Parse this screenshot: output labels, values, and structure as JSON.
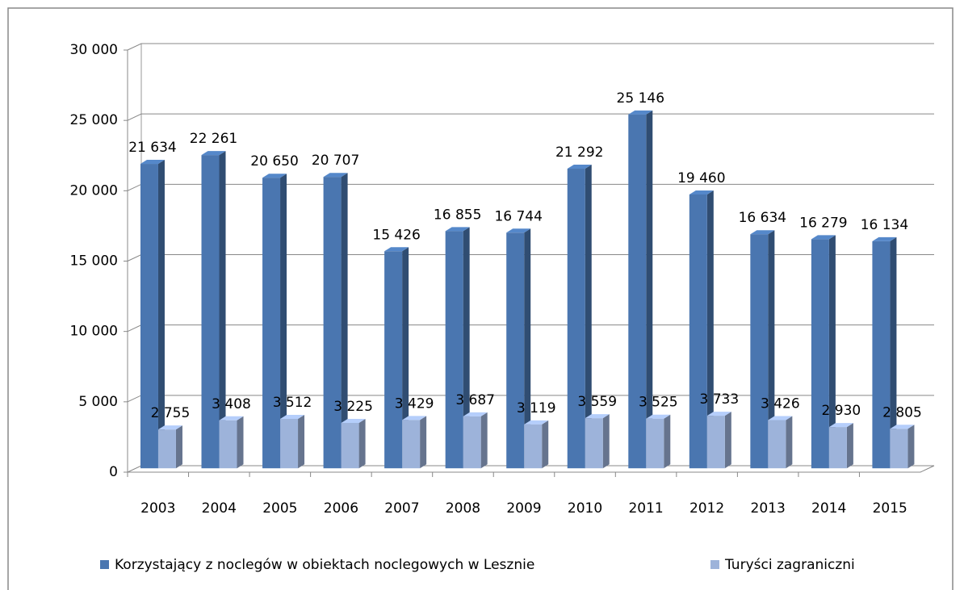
{
  "chart_data": {
    "type": "bar3d",
    "categories": [
      "2003",
      "2004",
      "2005",
      "2006",
      "2007",
      "2008",
      "2009",
      "2010",
      "2011",
      "2012",
      "2013",
      "2014",
      "2015"
    ],
    "series": [
      {
        "name": "Korzystający z noclegów w obiektach noclegowych w Lesznie",
        "color": "#4a76b0",
        "values": [
          21634,
          22261,
          20650,
          20707,
          15426,
          16855,
          16744,
          21292,
          25146,
          19460,
          16634,
          16279,
          16134
        ],
        "value_labels": [
          "21 634",
          "22 261",
          "20 650",
          "20 707",
          "15 426",
          "16 855",
          "16 744",
          "21 292",
          "25 146",
          "19 460",
          "16 634",
          "16 279",
          "16 134"
        ]
      },
      {
        "name": "Turyści zagraniczni",
        "color": "#9db3da",
        "values": [
          2755,
          3408,
          3512,
          3225,
          3429,
          3687,
          3119,
          3559,
          3525,
          3733,
          3426,
          2930,
          2805
        ],
        "value_labels": [
          "2 755",
          "3 408",
          "3 512",
          "3 225",
          "3 429",
          "3 687",
          "3 119",
          "3 559",
          "3 525",
          "3 733",
          "3 426",
          "2 930",
          "2 805"
        ]
      }
    ],
    "ylim": [
      0,
      30000
    ],
    "yticks": [
      0,
      {
        "value": 5000,
        "label": "5 000"
      },
      {
        "value": 10000,
        "label": "10 000"
      },
      {
        "value": 15000,
        "label": "15 000"
      },
      {
        "value": 20000,
        "label": "20 000"
      },
      {
        "value": 25000,
        "label": "25 000"
      },
      {
        "value": 30000,
        "label": "30 000"
      }
    ],
    "grid": true,
    "legend": "bottom"
  }
}
